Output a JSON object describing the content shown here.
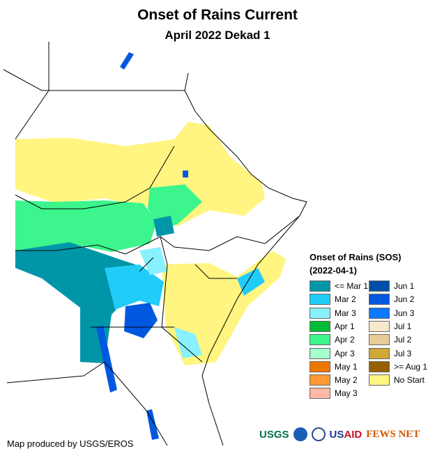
{
  "title": "Onset of Rains Current",
  "subtitle": "April 2022 Dekad 1",
  "legend": {
    "title": "Onset of Rains (SOS)",
    "subtitle": "(2022-04-1)",
    "items": [
      {
        "label": "<= Mar 1",
        "color": "#0096A8"
      },
      {
        "label": "Mar 2",
        "color": "#22CCF8"
      },
      {
        "label": "Mar 3",
        "color": "#88F0FF"
      },
      {
        "label": "Apr 1",
        "color": "#00BB33"
      },
      {
        "label": "Apr 2",
        "color": "#3CF58C"
      },
      {
        "label": "Apr 3",
        "color": "#A8FFCC"
      },
      {
        "label": "May 1",
        "color": "#EE7700"
      },
      {
        "label": "May 2",
        "color": "#FF9933"
      },
      {
        "label": "May 3",
        "color": "#FFB8A8"
      },
      {
        "label": "Jun 1",
        "color": "#0050A8"
      },
      {
        "label": "Jun 2",
        "color": "#0058E0"
      },
      {
        "label": "Jun 3",
        "color": "#0A78FF"
      },
      {
        "label": "Jul 1",
        "color": "#F8E8CC"
      },
      {
        "label": "Jul 2",
        "color": "#E6CC98"
      },
      {
        "label": "Jul 3",
        "color": "#D0A838"
      },
      {
        "label": ">= Aug 1",
        "color": "#966000"
      },
      {
        "label": "No Start",
        "color": "#FFF580"
      }
    ]
  },
  "credit": "Map produced by USGS/EROS",
  "logos": [
    "USGS",
    "NOAA",
    "USAID",
    "FEWS NET"
  ]
}
